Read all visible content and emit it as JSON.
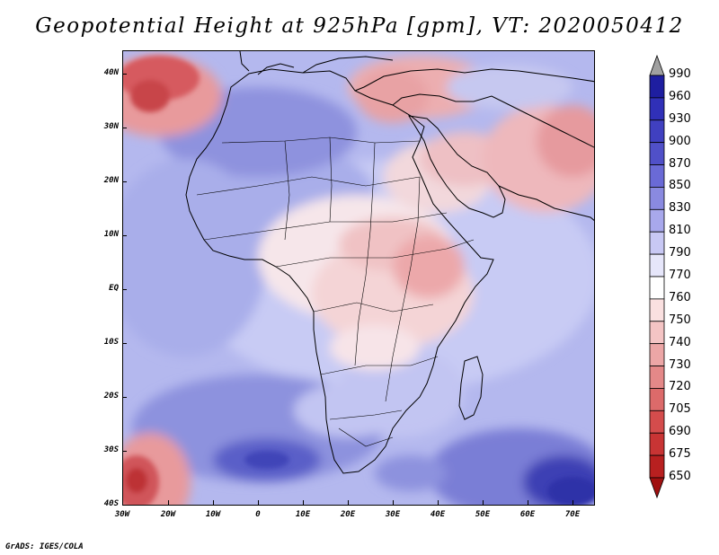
{
  "title": "Geopotential Height at 925hPa [gpm], VT: 2020050412",
  "footer": "GrADS: IGES/COLA",
  "map": {
    "lat_labels": [
      "40N",
      "30N",
      "20N",
      "10N",
      "EQ",
      "10S",
      "20S",
      "30S",
      "40S"
    ],
    "lon_labels": [
      "30W",
      "20W",
      "10W",
      "0",
      "10E",
      "20E",
      "30E",
      "40E",
      "50E",
      "60E",
      "70E"
    ]
  },
  "legend": {
    "levels": [
      "990",
      "960",
      "930",
      "900",
      "870",
      "850",
      "830",
      "810",
      "790",
      "770",
      "760",
      "750",
      "740",
      "730",
      "720",
      "705",
      "690",
      "675",
      "650"
    ],
    "colors": [
      "#a0a0a0",
      "#1e1ea0",
      "#3030b8",
      "#4040c0",
      "#5050c8",
      "#6a6ad6",
      "#8a8ae0",
      "#a8a8ec",
      "#c8c8f4",
      "#e6e6fa",
      "#ffffff",
      "#fae0e0",
      "#f4c4c4",
      "#eca6a6",
      "#e48888",
      "#dc6a6a",
      "#d44c4c",
      "#c83434",
      "#b82020",
      "#a01010"
    ]
  }
}
